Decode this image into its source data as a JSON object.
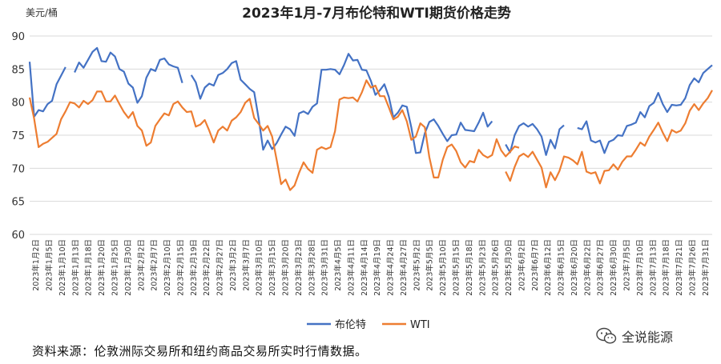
{
  "chart_data": {
    "type": "line",
    "title": "2023年1月-7月布伦特和WTI期货价格走势",
    "ylabel": "美元/桶",
    "ylim": [
      60,
      90
    ],
    "yticks": [
      60,
      65,
      70,
      75,
      80,
      85,
      90
    ],
    "grid": true,
    "legend_position": "bottom-center",
    "x_tick_labels": [
      "2023年1月2日",
      "2023年1月5日",
      "2023年1月10日",
      "2023年1月13日",
      "2023年1月18日",
      "2023年1月20日",
      "2023年1月25日",
      "2023年1月30日",
      "2023年2月2日",
      "2023年2月7日",
      "2023年2月10日",
      "2023年2月15日",
      "2023年2月19日",
      "2023年2月22日",
      "2023年2月27日",
      "2023年3月2日",
      "2023年3月7日",
      "2023年3月10日",
      "2023年3月15日",
      "2023年3月20日",
      "2023年3月23日",
      "2023年3月28日",
      "2023年3月31日",
      "2023年4月5日",
      "2023年4月11日",
      "2023年4月14日",
      "2023年4月19日",
      "2023年4月24日",
      "2023年4月27日",
      "2023年5月2日",
      "2023年5月5日",
      "2023年5月10日",
      "2023年5月15日",
      "2023年5月18日",
      "2023年5月23日",
      "2023年5月26日",
      "2023年5月30日",
      "2023年6月2日",
      "2023年6月7日",
      "2023年6月12日",
      "2023年6月15日",
      "2023年6月20日",
      "2023年6月22日",
      "2023年6月27日",
      "2023年6月30日",
      "2023年7月5日",
      "2023年7月10日",
      "2023年7月13日",
      "2023年7月18日",
      "2023年7月21日",
      "2023年7月26日",
      "2023年7月31日"
    ],
    "series": [
      {
        "name": "布伦特",
        "color": "#4472C4",
        "segments": [
          {
            "start": 0,
            "values": [
              86.1,
              77.8,
              78.8,
              78.6,
              79.7,
              80.2,
              82.7,
              84.0,
              85.3
            ]
          },
          {
            "start": 10,
            "values": [
              84.5,
              86.0,
              85.2,
              86.4,
              87.6,
              88.2,
              86.2,
              86.1,
              87.5,
              86.9,
              85.0,
              84.6,
              82.8,
              82.2,
              79.9,
              80.9,
              83.7,
              85.0,
              84.7,
              86.4,
              86.6,
              85.7,
              85.4,
              85.2,
              82.9
            ]
          },
          {
            "start": 36,
            "values": [
              84.1,
              83.0,
              80.5,
              82.2,
              82.8,
              82.5,
              84.1,
              84.4,
              85.0,
              85.9,
              86.2,
              83.4,
              82.7,
              82.0,
              81.5,
              77.5,
              72.8,
              74.2,
              72.9,
              73.8,
              75.1,
              76.3,
              75.9,
              74.9,
              78.3,
              78.6,
              78.2,
              79.3,
              79.8,
              84.9,
              84.9,
              85.0,
              84.9,
              84.2,
              85.6,
              87.3,
              86.3,
              86.4,
              84.9,
              84.8,
              83.2,
              81.1,
              81.8,
              82.7,
              80.8,
              77.7,
              78.4,
              79.5,
              79.3,
              76.2,
              72.3,
              72.4,
              75.3,
              77.0,
              77.4,
              76.4,
              75.2,
              74.1,
              75.0,
              75.1,
              76.9,
              75.8,
              75.7,
              75.6,
              76.9,
              78.4,
              76.3,
              77.1
            ]
          },
          {
            "start": 106,
            "values": [
              73.6,
              72.4,
              75.0,
              76.4,
              76.8,
              76.3,
              76.7,
              75.9,
              74.8,
              72.0,
              74.3,
              73.0,
              75.9,
              76.5
            ]
          },
          {
            "start": 122,
            "values": [
              76.1,
              75.9,
              77.1,
              74.2,
              73.9,
              74.2,
              72.3,
              74.0,
              74.3,
              75.0,
              74.9,
              76.4,
              76.6,
              76.9,
              78.5,
              77.7,
              79.4,
              79.9,
              81.4,
              79.7,
              78.5,
              79.6,
              79.5,
              79.6,
              80.6,
              82.6,
              83.6,
              83.0,
              84.4,
              85.0,
              85.6
            ]
          }
        ]
      },
      {
        "name": "WTI",
        "color": "#ED7D31",
        "segments": [
          {
            "start": 0,
            "values": [
              80.7,
              77.5,
              73.2,
              73.7,
              74.0,
              74.6,
              75.2,
              77.4,
              78.6,
              80.0,
              79.8,
              79.2,
              80.2,
              79.7,
              80.3,
              81.6,
              81.6,
              80.1,
              80.1,
              81.0,
              79.7,
              78.5,
              77.6,
              78.5,
              76.4,
              75.7,
              73.4,
              73.9,
              76.4,
              77.4,
              78.3,
              78.0,
              79.7,
              80.1,
              79.2,
              78.5,
              78.6,
              76.3,
              76.6,
              77.3,
              75.7,
              73.9,
              75.7,
              76.3,
              75.7,
              77.2,
              77.7,
              78.5,
              79.9,
              80.5,
              77.6,
              76.7,
              75.7,
              76.4,
              74.8,
              71.3,
              67.6,
              68.3,
              66.7,
              67.4,
              69.3,
              70.9,
              69.9,
              69.3,
              72.8,
              73.2,
              72.9,
              73.2,
              75.6,
              80.4,
              80.7,
              80.6,
              80.7,
              80.1,
              81.5,
              83.3,
              82.2,
              82.5,
              80.9,
              80.9,
              79.2,
              77.4,
              77.8,
              78.8,
              77.1,
              74.3,
              74.8,
              76.8,
              76.2,
              71.7,
              68.6,
              68.6,
              71.3,
              73.2,
              73.6,
              72.6,
              70.9,
              70.1,
              71.1,
              70.9,
              72.8,
              72.0,
              71.6,
              72.0,
              74.4,
              72.7,
              71.8,
              72.5,
              73.3,
              73.1
            ]
          },
          {
            "start": 106,
            "values": [
              69.5,
              68.1,
              70.2,
              71.8,
              72.2,
              71.7,
              72.5,
              71.3,
              70.1,
              67.1,
              69.4,
              68.2,
              69.6,
              71.8,
              71.6,
              71.2,
              70.6,
              72.5,
              69.5,
              69.2,
              69.4,
              67.7,
              69.6,
              69.7,
              70.6,
              69.8,
              71.0,
              71.8,
              71.8,
              72.8,
              73.9,
              73.4,
              74.8,
              75.8,
              76.9,
              75.4,
              74.1,
              75.8,
              75.4,
              75.7,
              76.8,
              78.7,
              79.7,
              78.8,
              79.8,
              80.6,
              81.8
            ]
          }
        ]
      }
    ]
  },
  "source_note": "资料来源：伦敦洲际交易所和纽约商品交易所实时行情数据。",
  "watermark_text": "全说能源",
  "watermark_icon": "wechat-icon"
}
